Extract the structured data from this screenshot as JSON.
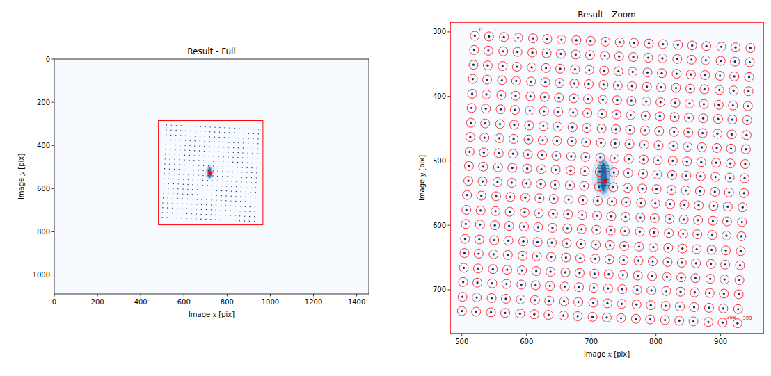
{
  "chart_data": [
    {
      "type": "image_scatter",
      "title": "Result - Full",
      "xlabel": "Image x [pix]",
      "ylabel": "Image y [pix]",
      "xlim": [
        0,
        1456
      ],
      "ylim": [
        1088,
        0
      ],
      "xticks": [
        0,
        200,
        400,
        600,
        800,
        1000,
        1200,
        1400
      ],
      "yticks": [
        0,
        200,
        400,
        600,
        800,
        1000
      ],
      "grid": false,
      "zoom_box": {
        "x": [
          482,
          966
        ],
        "y": [
          285,
          768
        ]
      },
      "bright_source": {
        "x": 719,
        "y": 525
      },
      "star": {
        "x": 722,
        "y": 530,
        "color": "red"
      }
    },
    {
      "type": "scatter",
      "title": "Result - Zoom",
      "xlabel": "Image x [pix]",
      "ylabel": "Image y [pix]",
      "xlim": [
        482,
        966
      ],
      "ylim": [
        768,
        285
      ],
      "xticks": [
        500,
        600,
        700,
        800,
        900
      ],
      "yticks": [
        300,
        400,
        500,
        600,
        700
      ],
      "grid": false,
      "bright_source": {
        "x": 719,
        "y": 525
      },
      "star": {
        "x": 722,
        "y": 530,
        "color": "red"
      },
      "annotations": [
        {
          "text": "0",
          "x": 527,
          "y": 299
        },
        {
          "text": "1",
          "x": 549,
          "y": 299
        },
        {
          "text": "398",
          "x": 909,
          "y": 745
        },
        {
          "text": "399",
          "x": 934,
          "y": 746
        }
      ],
      "series": [
        {
          "color": "#08306b",
          "marker": "circle",
          "x": [
            520,
            542,
            565,
            587,
            610,
            632,
            654,
            677,
            699,
            722,
            744,
            766,
            789,
            811,
            834,
            856,
            878,
            901,
            923,
            946,
            519,
            541,
            564,
            586,
            609,
            631,
            653,
            676,
            698,
            721,
            743,
            765,
            788,
            810,
            833,
            855,
            877,
            900,
            922,
            945,
            518,
            540,
            563,
            585,
            608,
            630,
            652,
            675,
            697,
            720,
            742,
            764,
            787,
            809,
            832,
            854,
            876,
            899,
            921,
            944,
            517,
            539,
            562,
            584,
            607,
            629,
            651,
            674,
            696,
            719,
            741,
            763,
            786,
            808,
            831,
            853,
            875,
            898,
            920,
            943,
            516,
            538,
            561,
            583,
            606,
            628,
            650,
            673,
            695,
            718,
            740,
            762,
            785,
            807,
            830,
            852,
            874,
            897,
            919,
            942,
            515,
            537,
            560,
            582,
            605,
            627,
            649,
            672,
            694,
            717,
            739,
            761,
            784,
            806,
            829,
            851,
            873,
            896,
            918,
            941,
            514,
            536,
            559,
            581,
            604,
            626,
            648,
            671,
            693,
            716,
            738,
            760,
            783,
            805,
            828,
            850,
            872,
            895,
            917,
            940,
            513,
            535,
            558,
            580,
            603,
            625,
            647,
            670,
            692,
            715,
            737,
            759,
            782,
            804,
            827,
            849,
            871,
            894,
            916,
            939,
            512,
            534,
            557,
            579,
            602,
            624,
            646,
            669,
            691,
            714,
            736,
            758,
            781,
            803,
            826,
            848,
            870,
            893,
            915,
            938,
            511,
            533,
            556,
            578,
            601,
            623,
            645,
            668,
            690,
            713,
            735,
            757,
            780,
            802,
            825,
            847,
            869,
            892,
            914,
            937,
            510,
            532,
            555,
            577,
            600,
            622,
            644,
            667,
            689,
            712,
            734,
            756,
            779,
            801,
            824,
            846,
            868,
            891,
            913,
            936,
            508,
            530,
            553,
            575,
            598,
            620,
            642,
            665,
            687,
            710,
            732,
            754,
            777,
            799,
            822,
            844,
            866,
            889,
            911,
            934,
            507,
            529,
            552,
            574,
            597,
            619,
            641,
            664,
            686,
            709,
            731,
            753,
            776,
            798,
            821,
            843,
            865,
            888,
            910,
            933,
            506,
            528,
            551,
            573,
            596,
            618,
            640,
            663,
            685,
            708,
            730,
            752,
            775,
            797,
            820,
            842,
            864,
            887,
            909,
            932,
            505,
            527,
            550,
            572,
            595,
            617,
            639,
            662,
            684,
            707,
            729,
            751,
            774,
            796,
            819,
            841,
            863,
            886,
            908,
            931,
            504,
            526,
            549,
            571,
            594,
            616,
            638,
            661,
            683,
            706,
            728,
            750,
            773,
            795,
            818,
            840,
            862,
            885,
            907,
            930,
            503,
            525,
            548,
            570,
            593,
            615,
            637,
            660,
            682,
            705,
            727,
            749,
            772,
            794,
            817,
            839,
            861,
            884,
            906,
            929,
            502,
            524,
            547,
            569,
            592,
            614,
            636,
            659,
            681,
            704,
            726,
            748,
            771,
            793,
            816,
            838,
            860,
            883,
            905,
            928,
            501,
            523,
            546,
            568,
            591,
            613,
            635,
            658,
            680,
            703,
            725,
            747,
            770,
            792,
            815,
            837,
            859,
            882,
            904,
            927,
            500,
            522,
            545,
            567,
            590,
            612,
            634,
            657,
            679,
            702,
            724,
            746,
            769,
            791,
            814,
            836,
            858,
            881,
            903,
            926
          ],
          "y": [
            306,
            307,
            308,
            309,
            310,
            311,
            312,
            313,
            314,
            315,
            316,
            317,
            318,
            319,
            320,
            321,
            322,
            323,
            324,
            325,
            328,
            329,
            330,
            331,
            332,
            333,
            334,
            335,
            336,
            337,
            338,
            339,
            340,
            341,
            342,
            343,
            344,
            345,
            346,
            347,
            351,
            352,
            353,
            354,
            355,
            356,
            357,
            358,
            359,
            360,
            361,
            362,
            363,
            364,
            365,
            366,
            367,
            368,
            369,
            370,
            373,
            374,
            375,
            376,
            377,
            378,
            379,
            380,
            381,
            382,
            383,
            384,
            385,
            386,
            387,
            388,
            389,
            390,
            391,
            392,
            396,
            397,
            398,
            399,
            400,
            401,
            402,
            403,
            404,
            405,
            406,
            407,
            408,
            409,
            410,
            411,
            412,
            413,
            414,
            415,
            418,
            419,
            420,
            421,
            422,
            423,
            424,
            425,
            426,
            427,
            428,
            429,
            430,
            431,
            432,
            433,
            434,
            435,
            436,
            437,
            441,
            442,
            443,
            444,
            445,
            446,
            447,
            448,
            449,
            450,
            451,
            452,
            453,
            454,
            455,
            456,
            457,
            458,
            459,
            460,
            463,
            464,
            465,
            466,
            467,
            468,
            469,
            470,
            471,
            472,
            473,
            474,
            475,
            476,
            477,
            478,
            479,
            480,
            481,
            482,
            486,
            487,
            488,
            489,
            490,
            491,
            492,
            493,
            494,
            495,
            496,
            497,
            498,
            499,
            500,
            501,
            502,
            503,
            504,
            505,
            508,
            509,
            510,
            511,
            512,
            513,
            514,
            515,
            516,
            517,
            518,
            519,
            520,
            521,
            522,
            523,
            524,
            525,
            526,
            527,
            531,
            532,
            533,
            534,
            535,
            536,
            537,
            538,
            539,
            540,
            541,
            542,
            543,
            544,
            545,
            546,
            547,
            548,
            549,
            550,
            553,
            554,
            555,
            556,
            557,
            558,
            559,
            560,
            561,
            562,
            563,
            564,
            565,
            566,
            567,
            568,
            569,
            570,
            571,
            572,
            576,
            577,
            578,
            579,
            580,
            581,
            582,
            583,
            584,
            585,
            586,
            587,
            588,
            589,
            590,
            591,
            592,
            593,
            594,
            595,
            598,
            599,
            600,
            601,
            602,
            603,
            604,
            605,
            606,
            607,
            608,
            609,
            610,
            611,
            612,
            613,
            614,
            615,
            616,
            617,
            621,
            622,
            623,
            624,
            625,
            626,
            627,
            628,
            629,
            630,
            631,
            632,
            633,
            634,
            635,
            636,
            637,
            638,
            639,
            640,
            643,
            644,
            645,
            646,
            647,
            648,
            649,
            650,
            651,
            652,
            653,
            654,
            655,
            656,
            657,
            658,
            659,
            660,
            661,
            662,
            666,
            667,
            668,
            669,
            670,
            671,
            672,
            673,
            674,
            675,
            676,
            677,
            678,
            679,
            680,
            681,
            682,
            683,
            684,
            685,
            688,
            689,
            690,
            691,
            692,
            693,
            694,
            695,
            696,
            697,
            698,
            699,
            700,
            701,
            702,
            703,
            704,
            705,
            706,
            707,
            711,
            712,
            713,
            714,
            715,
            716,
            717,
            718,
            719,
            720,
            721,
            722,
            723,
            724,
            725,
            726,
            727,
            728,
            729,
            730,
            733,
            734,
            735,
            736,
            737,
            738,
            739,
            740,
            741,
            742,
            743,
            744,
            745,
            746,
            747,
            748,
            749,
            750,
            751,
            752
          ]
        }
      ]
    }
  ]
}
